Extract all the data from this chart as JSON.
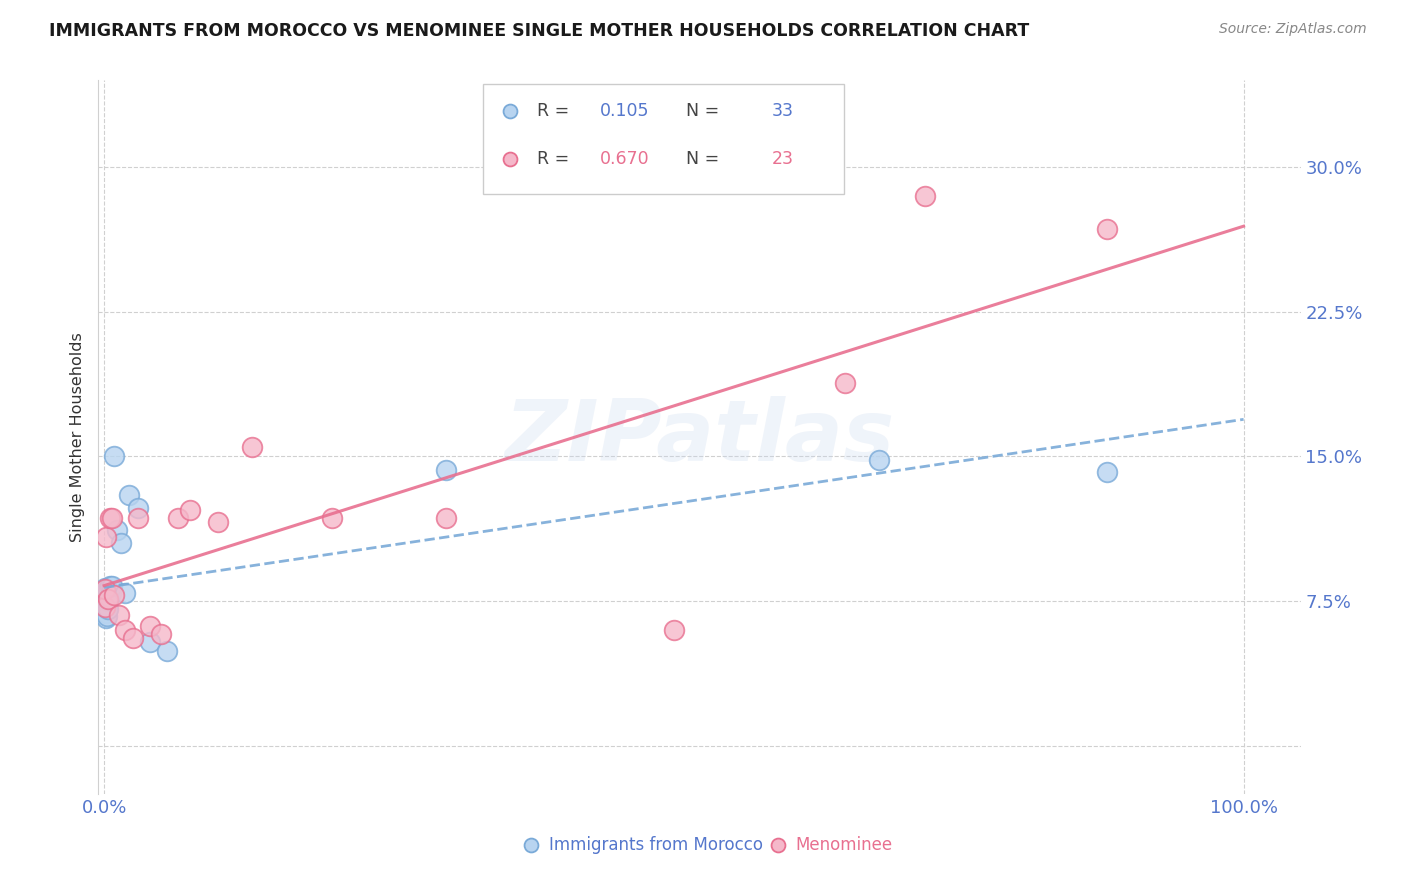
{
  "title": "IMMIGRANTS FROM MOROCCO VS MENOMINEE SINGLE MOTHER HOUSEHOLDS CORRELATION CHART",
  "source": "Source: ZipAtlas.com",
  "ylabel": "Single Mother Households",
  "watermark": "ZIPatlas",
  "series1_label": "Immigrants from Morocco",
  "series1_R": "0.105",
  "series1_N": "33",
  "series1_face": "#b8d4f0",
  "series1_edge": "#7aaad8",
  "series1_line": "#7aaad8",
  "series2_label": "Menominee",
  "series2_R": "0.670",
  "series2_N": "23",
  "series2_face": "#f5b8ca",
  "series2_edge": "#e87090",
  "series2_line": "#e87090",
  "ytick_vals": [
    0.0,
    0.075,
    0.15,
    0.225,
    0.3
  ],
  "ytick_labels": [
    "",
    "7.5%",
    "15.0%",
    "22.5%",
    "30.0%"
  ],
  "ylim": [
    -0.025,
    0.345
  ],
  "xlim": [
    -0.005,
    1.05
  ],
  "series1_x": [
    0.0003,
    0.0005,
    0.0006,
    0.0008,
    0.001,
    0.001,
    0.0012,
    0.0013,
    0.0015,
    0.0016,
    0.0018,
    0.002,
    0.002,
    0.0022,
    0.0025,
    0.003,
    0.003,
    0.0035,
    0.004,
    0.005,
    0.006,
    0.007,
    0.009,
    0.011,
    0.015,
    0.018,
    0.022,
    0.03,
    0.04,
    0.055,
    0.3,
    0.68,
    0.88
  ],
  "series1_y": [
    0.078,
    0.076,
    0.073,
    0.071,
    0.082,
    0.078,
    0.074,
    0.076,
    0.072,
    0.069,
    0.066,
    0.08,
    0.074,
    0.071,
    0.067,
    0.08,
    0.075,
    0.071,
    0.077,
    0.083,
    0.079,
    0.083,
    0.15,
    0.112,
    0.105,
    0.079,
    0.13,
    0.123,
    0.054,
    0.049,
    0.143,
    0.148,
    0.142
  ],
  "series2_x": [
    0.0005,
    0.001,
    0.002,
    0.003,
    0.005,
    0.007,
    0.009,
    0.013,
    0.018,
    0.025,
    0.03,
    0.04,
    0.05,
    0.065,
    0.075,
    0.1,
    0.13,
    0.2,
    0.3,
    0.5,
    0.65,
    0.72,
    0.88
  ],
  "series2_y": [
    0.072,
    0.081,
    0.108,
    0.076,
    0.118,
    0.118,
    0.078,
    0.068,
    0.06,
    0.056,
    0.118,
    0.062,
    0.058,
    0.118,
    0.122,
    0.116,
    0.155,
    0.118,
    0.118,
    0.06,
    0.188,
    0.285,
    0.268
  ],
  "grid_color": "#d0d0d0",
  "bg_color": "#ffffff",
  "title_color": "#1a1a1a",
  "source_color": "#888888",
  "axis_tick_color": "#5577cc",
  "ylabel_color": "#333333",
  "legend_R_color_blue": "#5577cc",
  "legend_R_color_pink": "#e87090",
  "legend_N_color_blue": "#5577cc",
  "legend_N_color_pink": "#e87090"
}
